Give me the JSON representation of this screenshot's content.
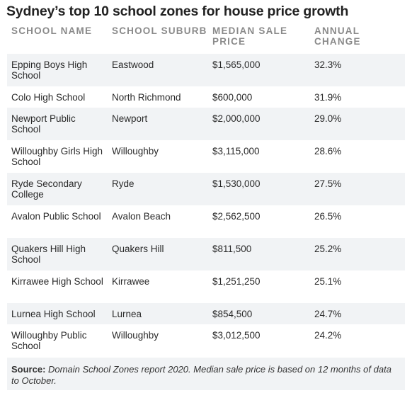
{
  "title": "Sydney’s top 10 school zones for house price growth",
  "chart_data": {
    "type": "table",
    "title": "Sydney’s top 10 school zones for house price growth",
    "columns": [
      "SCHOOL NAME",
      "SCHOOL SUBURB",
      "MEDIAN SALE PRICE",
      "ANNUAL CHANGE"
    ],
    "rows": [
      [
        "Epping Boys High School",
        "Eastwood",
        "$1,565,000",
        "32.3%"
      ],
      [
        "Colo High School",
        "North Richmond",
        "$600,000",
        "31.9%"
      ],
      [
        "Newport Public School",
        "Newport",
        "$2,000,000",
        "29.0%"
      ],
      [
        "Willoughby Girls High School",
        "Willoughby",
        "$3,115,000",
        "28.6%"
      ],
      [
        "Ryde Secondary College",
        "Ryde",
        "$1,530,000",
        "27.5%"
      ],
      [
        "Avalon Public School",
        "Avalon Beach",
        "$2,562,500",
        "26.5%"
      ],
      [
        "Quakers Hill High School",
        "Quakers Hill",
        "$811,500",
        "25.2%"
      ],
      [
        "Kirrawee High School",
        "Kirrawee",
        "$1,251,250",
        "25.1%"
      ],
      [
        "Lurnea High School",
        "Lurnea",
        "$854,500",
        "24.7%"
      ],
      [
        "Willoughby Public School",
        "Willoughby",
        "$3,012,500",
        "24.2%"
      ]
    ]
  },
  "source": {
    "label": "Source:",
    "text": "Domain School Zones report 2020. Median sale price is based on 12 months of data to October."
  },
  "colors": {
    "row_stripe": "#f1f3f5",
    "header_text": "#8a8a8a",
    "body_text": "#2a2a2a"
  }
}
